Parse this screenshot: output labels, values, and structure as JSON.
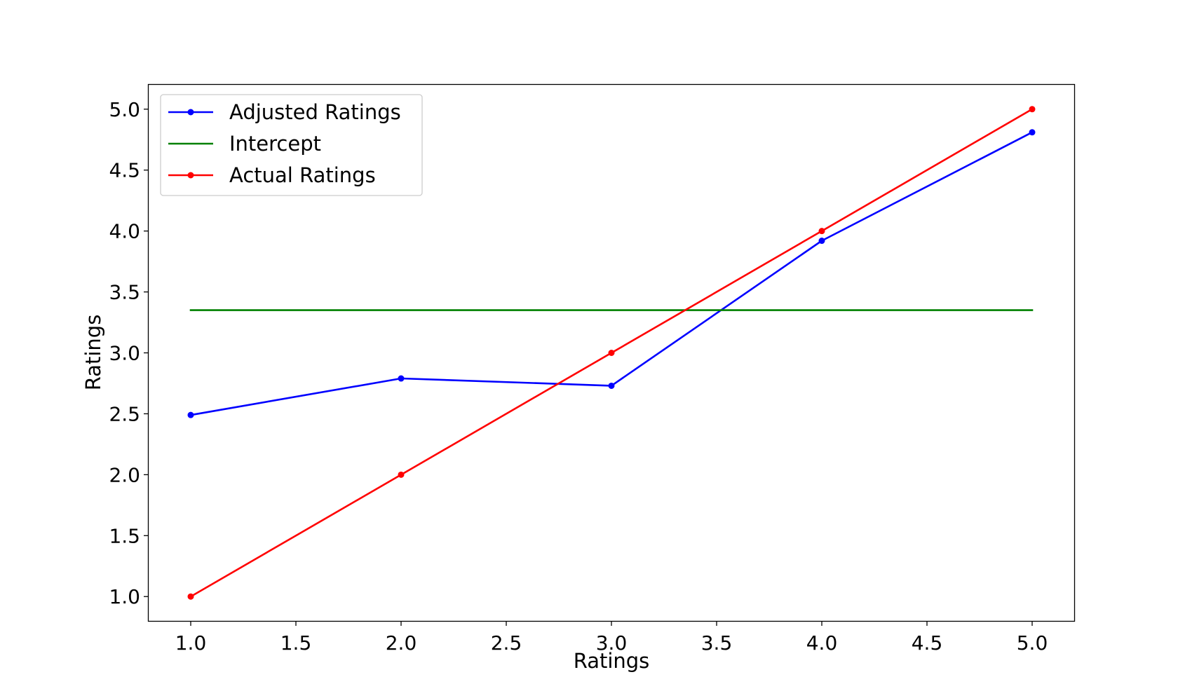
{
  "chart_data": {
    "type": "line",
    "xlabel": "Ratings",
    "ylabel": "Ratings",
    "xlim": [
      0.8,
      5.2
    ],
    "ylim": [
      0.8,
      5.2
    ],
    "xticks": [
      "1.0",
      "1.5",
      "2.0",
      "2.5",
      "3.0",
      "3.5",
      "4.0",
      "4.5",
      "5.0"
    ],
    "yticks": [
      "1.0",
      "1.5",
      "2.0",
      "2.5",
      "3.0",
      "3.5",
      "4.0",
      "4.5",
      "5.0"
    ],
    "grid": false,
    "legend_position": "upper-left",
    "series": [
      {
        "name": "Adjusted Ratings",
        "color": "#0000ff",
        "marker": "circle",
        "x": [
          1,
          2,
          3,
          4,
          5
        ],
        "y": [
          2.49,
          2.79,
          2.73,
          3.92,
          4.81
        ]
      },
      {
        "name": "Intercept",
        "color": "#008000",
        "marker": "none",
        "x": [
          1,
          5
        ],
        "y": [
          3.35,
          3.35
        ]
      },
      {
        "name": "Actual Ratings",
        "color": "#ff0000",
        "marker": "circle",
        "x": [
          1,
          2,
          3,
          4,
          5
        ],
        "y": [
          1,
          2,
          3,
          4,
          5
        ]
      }
    ]
  }
}
